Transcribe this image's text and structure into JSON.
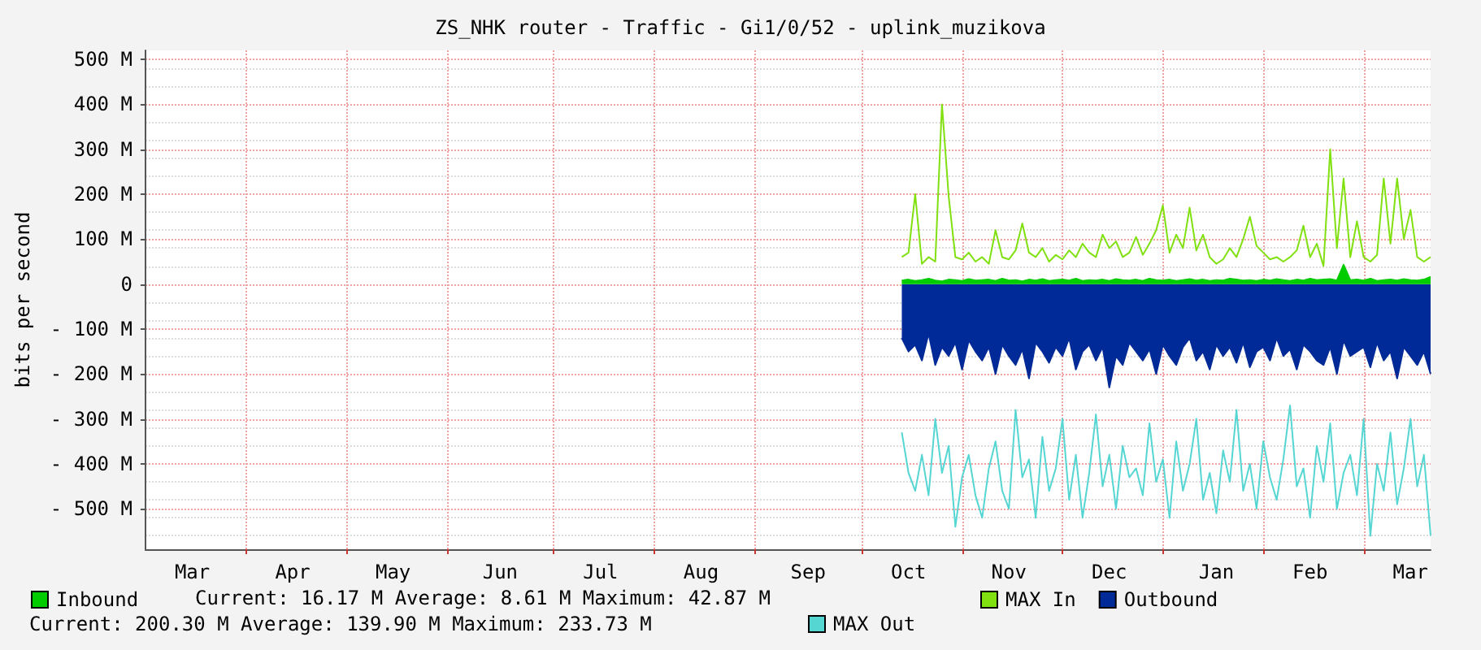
{
  "chart_data": {
    "type": "line",
    "title": "ZS_NHK router - Traffic - Gi1/0/52 - uplink_muzikova",
    "ylabel": "bits per second",
    "categories": [
      null,
      null,
      null,
      null,
      null,
      null,
      null,
      "Mar",
      null,
      null,
      null,
      null,
      null,
      null,
      null,
      null,
      null,
      null,
      null,
      null,
      null,
      null,
      "Apr",
      null,
      null,
      null,
      null,
      null,
      null,
      null,
      null,
      null,
      null,
      null,
      null,
      null,
      null,
      "May",
      null,
      null,
      null,
      null,
      null,
      null,
      null,
      null,
      null,
      null,
      null,
      null,
      null,
      null,
      null,
      "Jun",
      null,
      null,
      null,
      null,
      null,
      null,
      null,
      null,
      null,
      null,
      null,
      null,
      null,
      null,
      "Jul",
      null,
      null,
      null,
      null,
      null,
      null,
      null,
      null,
      null,
      null,
      null,
      null,
      null,
      null,
      "Aug",
      null,
      null,
      null,
      null,
      null,
      null,
      null,
      null,
      null,
      null,
      null,
      null,
      null,
      null,
      null,
      "Sep",
      null,
      null,
      null,
      null,
      null,
      null,
      null,
      null,
      null,
      null,
      null,
      null,
      null,
      null,
      "Oct",
      null,
      null,
      null,
      null,
      null,
      null,
      null,
      null,
      null,
      null,
      null,
      null,
      null,
      null,
      "Nov",
      null,
      null,
      null,
      null,
      null,
      null,
      null,
      null,
      null,
      null,
      null,
      null,
      null,
      null,
      "Dec",
      null,
      null,
      null,
      null,
      null,
      null,
      null,
      null,
      null,
      null,
      null,
      null,
      null,
      null,
      null,
      "Jan",
      null,
      null,
      null,
      null,
      null,
      null,
      null,
      null,
      null,
      null,
      null,
      null,
      null,
      "Feb",
      null,
      null,
      null,
      null,
      null,
      null,
      null,
      null,
      null,
      null,
      null,
      null,
      null,
      null,
      "Mar",
      null,
      null,
      null
    ],
    "series": [
      {
        "name": "Outbound",
        "type": "area",
        "color": "#002a97",
        "values": [
          null,
          null,
          null,
          null,
          null,
          null,
          null,
          null,
          null,
          null,
          null,
          null,
          null,
          null,
          null,
          null,
          null,
          null,
          null,
          null,
          null,
          null,
          null,
          null,
          null,
          null,
          null,
          null,
          null,
          null,
          null,
          null,
          null,
          null,
          null,
          null,
          null,
          null,
          null,
          null,
          null,
          null,
          null,
          null,
          null,
          null,
          null,
          null,
          null,
          null,
          null,
          null,
          null,
          null,
          null,
          null,
          null,
          null,
          null,
          null,
          null,
          null,
          null,
          null,
          null,
          null,
          null,
          null,
          null,
          null,
          null,
          null,
          null,
          null,
          null,
          null,
          null,
          null,
          null,
          null,
          null,
          null,
          null,
          null,
          null,
          null,
          null,
          null,
          null,
          null,
          null,
          null,
          null,
          null,
          null,
          null,
          null,
          null,
          null,
          null,
          null,
          null,
          null,
          null,
          null,
          null,
          null,
          null,
          null,
          null,
          null,
          null,
          null,
          -120,
          -150,
          -135,
          -170,
          -110,
          -180,
          -140,
          -160,
          -130,
          -190,
          -125,
          -150,
          -170,
          -140,
          -200,
          -135,
          -160,
          -180,
          -145,
          -210,
          -130,
          -150,
          -175,
          -140,
          -160,
          -120,
          -190,
          -150,
          -135,
          -170,
          -140,
          -230,
          -160,
          -180,
          -130,
          -150,
          -170,
          -145,
          -200,
          -135,
          -160,
          -180,
          -140,
          -120,
          -170,
          -150,
          -190,
          -135,
          -160,
          -140,
          -175,
          -130,
          -185,
          -150,
          -140,
          -170,
          -120,
          -160,
          -145,
          -190,
          -135,
          -150,
          -170,
          -180,
          -140,
          -200,
          -125,
          -160,
          -150,
          -140,
          -185,
          -130,
          -170,
          -150,
          -210,
          -140,
          -160,
          -180,
          -150,
          -200
        ]
      },
      {
        "name": "MAX Out",
        "type": "line",
        "color": "#55d6d3",
        "values": [
          null,
          null,
          null,
          null,
          null,
          null,
          null,
          null,
          null,
          null,
          null,
          null,
          null,
          null,
          null,
          null,
          null,
          null,
          null,
          null,
          null,
          null,
          null,
          null,
          null,
          null,
          null,
          null,
          null,
          null,
          null,
          null,
          null,
          null,
          null,
          null,
          null,
          null,
          null,
          null,
          null,
          null,
          null,
          null,
          null,
          null,
          null,
          null,
          null,
          null,
          null,
          null,
          null,
          null,
          null,
          null,
          null,
          null,
          null,
          null,
          null,
          null,
          null,
          null,
          null,
          null,
          null,
          null,
          null,
          null,
          null,
          null,
          null,
          null,
          null,
          null,
          null,
          null,
          null,
          null,
          null,
          null,
          null,
          null,
          null,
          null,
          null,
          null,
          null,
          null,
          null,
          null,
          null,
          null,
          null,
          null,
          null,
          null,
          null,
          null,
          null,
          null,
          null,
          null,
          null,
          null,
          null,
          null,
          null,
          null,
          null,
          null,
          null,
          -330,
          -420,
          -460,
          -380,
          -470,
          -300,
          -420,
          -360,
          -540,
          -430,
          -380,
          -470,
          -520,
          -410,
          -350,
          -460,
          -500,
          -280,
          -430,
          -390,
          -520,
          -340,
          -460,
          -410,
          -300,
          -480,
          -380,
          -520,
          -420,
          -290,
          -450,
          -380,
          -500,
          -360,
          -430,
          -410,
          -470,
          -310,
          -440,
          -390,
          -520,
          -350,
          -460,
          -400,
          -300,
          -480,
          -420,
          -510,
          -370,
          -440,
          -280,
          -460,
          -400,
          -500,
          -350,
          -430,
          -480,
          -390,
          -270,
          -450,
          -410,
          -520,
          -360,
          -440,
          -310,
          -500,
          -420,
          -380,
          -470,
          -300,
          -560,
          -400,
          -460,
          -330,
          -490,
          -410,
          -300,
          -450,
          -380,
          -560
        ]
      },
      {
        "name": "Inbound",
        "type": "area",
        "color": "#00cc00",
        "values": [
          null,
          null,
          null,
          null,
          null,
          null,
          null,
          null,
          null,
          null,
          null,
          null,
          null,
          null,
          null,
          null,
          null,
          null,
          null,
          null,
          null,
          null,
          null,
          null,
          null,
          null,
          null,
          null,
          null,
          null,
          null,
          null,
          null,
          null,
          null,
          null,
          null,
          null,
          null,
          null,
          null,
          null,
          null,
          null,
          null,
          null,
          null,
          null,
          null,
          null,
          null,
          null,
          null,
          null,
          null,
          null,
          null,
          null,
          null,
          null,
          null,
          null,
          null,
          null,
          null,
          null,
          null,
          null,
          null,
          null,
          null,
          null,
          null,
          null,
          null,
          null,
          null,
          null,
          null,
          null,
          null,
          null,
          null,
          null,
          null,
          null,
          null,
          null,
          null,
          null,
          null,
          null,
          null,
          null,
          null,
          null,
          null,
          null,
          null,
          null,
          null,
          null,
          null,
          null,
          null,
          null,
          null,
          null,
          null,
          null,
          null,
          null,
          null,
          8,
          10,
          7,
          9,
          12,
          8,
          6,
          10,
          9,
          7,
          11,
          8,
          9,
          10,
          7,
          12,
          8,
          9,
          6,
          10,
          8,
          11,
          7,
          9,
          10,
          8,
          12,
          7,
          9,
          8,
          10,
          7,
          11,
          9,
          8,
          10,
          7,
          12,
          9,
          8,
          10,
          7,
          9,
          11,
          8,
          10,
          7,
          9,
          8,
          12,
          10,
          8,
          9,
          7,
          10,
          8,
          11,
          9,
          7,
          10,
          8,
          12,
          9,
          10,
          11,
          8,
          43,
          9,
          10,
          8,
          12,
          7,
          9,
          10,
          8,
          11,
          9,
          8,
          10,
          16
        ]
      },
      {
        "name": "MAX In",
        "type": "line",
        "color": "#80e010",
        "values": [
          null,
          null,
          null,
          null,
          null,
          null,
          null,
          null,
          null,
          null,
          null,
          null,
          null,
          null,
          null,
          null,
          null,
          null,
          null,
          null,
          null,
          null,
          null,
          null,
          null,
          null,
          null,
          null,
          null,
          null,
          null,
          null,
          null,
          null,
          null,
          null,
          null,
          null,
          null,
          null,
          null,
          null,
          null,
          null,
          null,
          null,
          null,
          null,
          null,
          null,
          null,
          null,
          null,
          null,
          null,
          null,
          null,
          null,
          null,
          null,
          null,
          null,
          null,
          null,
          null,
          null,
          null,
          null,
          null,
          null,
          null,
          null,
          null,
          null,
          null,
          null,
          null,
          null,
          null,
          null,
          null,
          null,
          null,
          null,
          null,
          null,
          null,
          null,
          null,
          null,
          null,
          null,
          null,
          null,
          null,
          null,
          null,
          null,
          null,
          null,
          null,
          null,
          null,
          null,
          null,
          null,
          null,
          null,
          null,
          null,
          null,
          null,
          null,
          60,
          70,
          200,
          45,
          60,
          50,
          400,
          195,
          60,
          55,
          70,
          50,
          60,
          45,
          120,
          60,
          55,
          75,
          135,
          70,
          60,
          80,
          50,
          65,
          55,
          75,
          60,
          90,
          70,
          60,
          110,
          80,
          95,
          60,
          70,
          105,
          65,
          90,
          120,
          175,
          70,
          110,
          80,
          170,
          75,
          110,
          60,
          45,
          55,
          80,
          60,
          100,
          150,
          85,
          70,
          55,
          60,
          50,
          60,
          75,
          130,
          60,
          90,
          40,
          300,
          80,
          235,
          60,
          140,
          60,
          50,
          65,
          235,
          90,
          235,
          100,
          165,
          60,
          50,
          60
        ]
      }
    ],
    "ylim": [
      -590,
      520
    ],
    "yticks": [
      {
        "value": -500,
        "label": "- 500 M"
      },
      {
        "value": -400,
        "label": "- 400 M"
      },
      {
        "value": -300,
        "label": "- 300 M"
      },
      {
        "value": -200,
        "label": "- 200 M"
      },
      {
        "value": -100,
        "label": "- 100 M"
      },
      {
        "value": 0,
        "label": "0"
      },
      {
        "value": 100,
        "label": "100 M"
      },
      {
        "value": 200,
        "label": "200 M"
      },
      {
        "value": 300,
        "label": "300 M"
      },
      {
        "value": 400,
        "label": "400 M"
      },
      {
        "value": 500,
        "label": "500 M"
      }
    ],
    "grid": true,
    "legend": "bottom",
    "marker": "none",
    "line_style": "solid",
    "annotations": [
      "Current: 16.17 M Average: 8.61 M Maximum: 42.87 M",
      "Current: 200.30 M Average: 139.90 M Maximum: 233.73 M"
    ]
  }
}
